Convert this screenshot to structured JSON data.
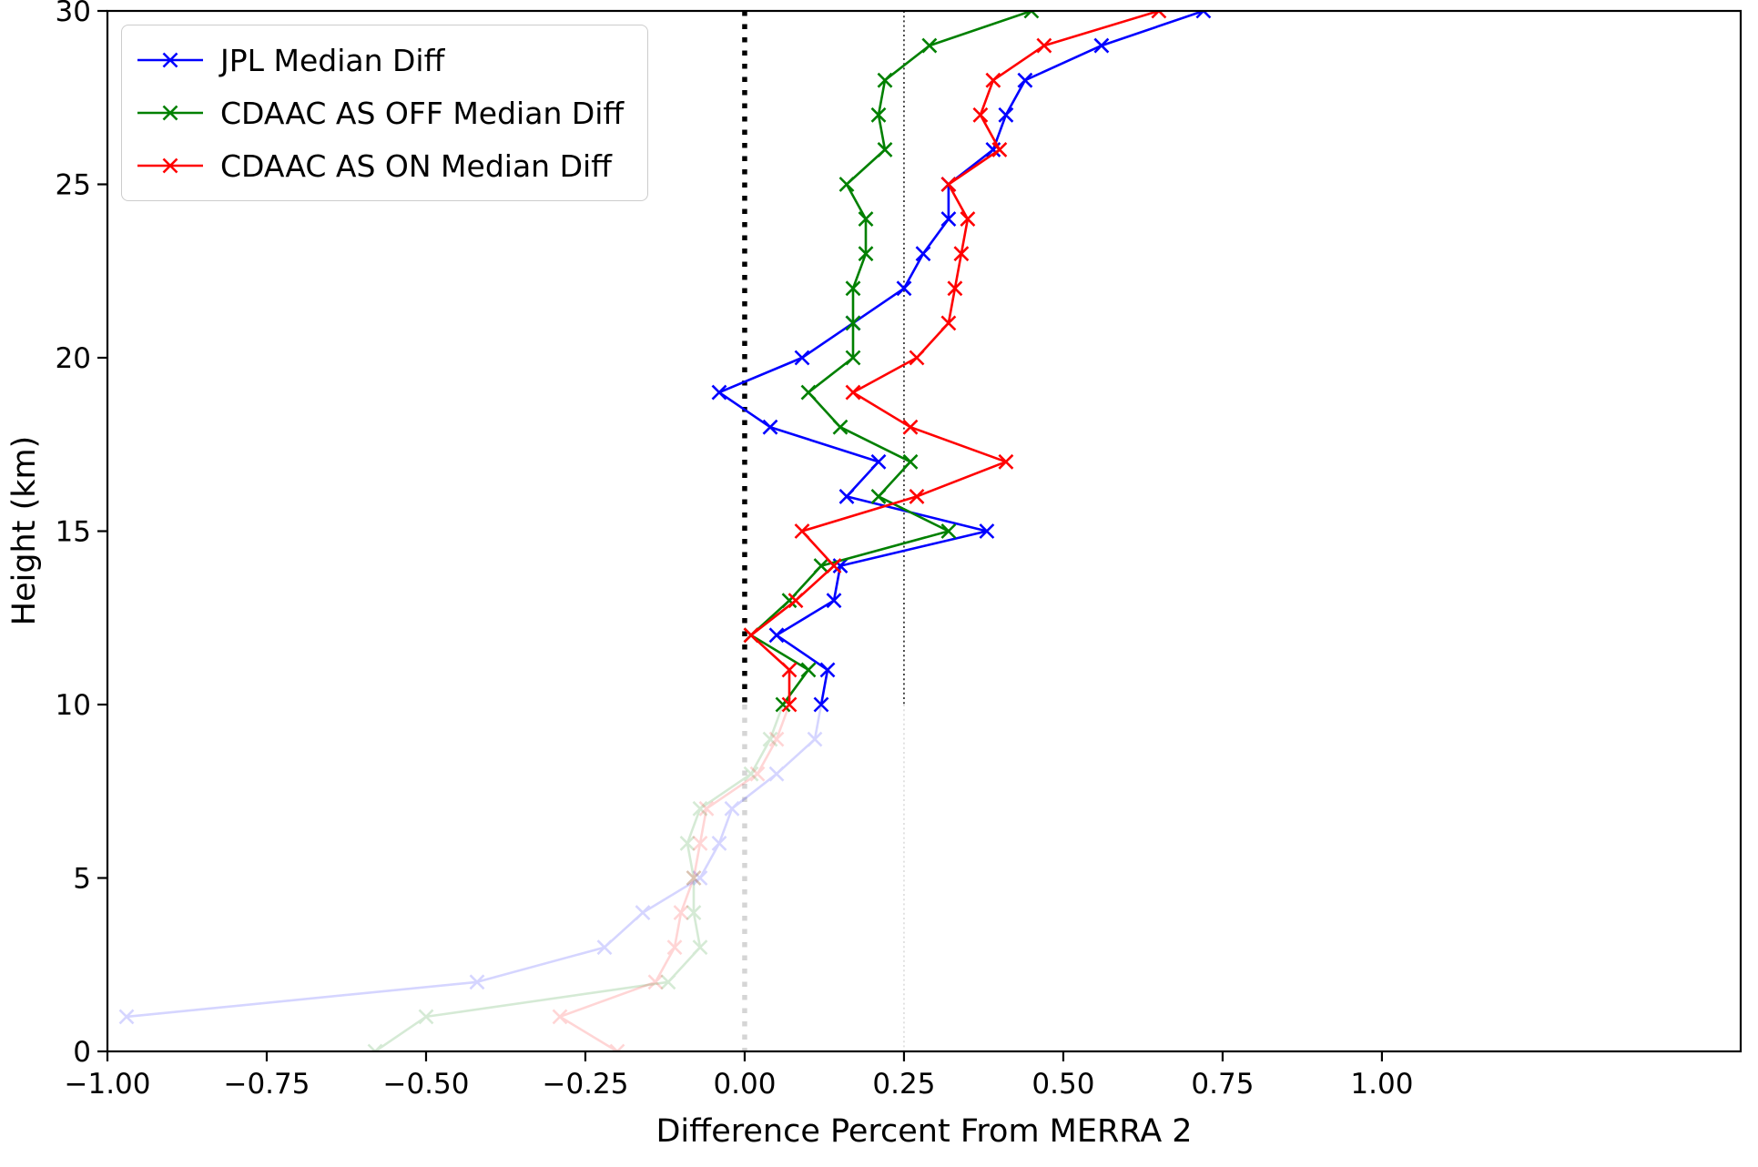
{
  "chart_data": {
    "type": "line",
    "title": "",
    "xlabel": "Difference Percent From MERRA 2",
    "ylabel": "Height (km)",
    "xlim": [
      -1.0,
      1.563
    ],
    "ylim": [
      0,
      30
    ],
    "xticks": [
      -1.0,
      -0.75,
      -0.5,
      -0.25,
      0.0,
      0.25,
      0.5,
      0.75,
      1.0
    ],
    "xtick_labels": [
      "−1.00",
      "−0.75",
      "−0.50",
      "−0.25",
      "0.00",
      "0.25",
      "0.50",
      "0.75",
      "1.00"
    ],
    "yticks": [
      0,
      5,
      10,
      15,
      20,
      25,
      30
    ],
    "ytick_labels": [
      "0",
      "5",
      "10",
      "15",
      "20",
      "25",
      "30"
    ],
    "grid": false,
    "legend_position": "upper-left",
    "fade_below_height_km": 10,
    "fade_alpha": 0.16,
    "reference_lines": [
      {
        "x": 0.0,
        "color": "#000000",
        "style": "dotted",
        "width": 5.5
      },
      {
        "x": 0.25,
        "color": "#000000",
        "style": "dotted",
        "width": 1.4
      }
    ],
    "heights_km": [
      30,
      29,
      28,
      27,
      26,
      25,
      24,
      23,
      22,
      21,
      20,
      19,
      18,
      17,
      16,
      15,
      14,
      13,
      12,
      11,
      10,
      9,
      8,
      7,
      6,
      5,
      4,
      3,
      2,
      1,
      0
    ],
    "series": [
      {
        "name": "JPL Median Diff",
        "color": "#0000ff",
        "marker": "x",
        "values": [
          0.72,
          0.56,
          0.44,
          0.41,
          0.39,
          0.32,
          0.32,
          0.28,
          0.25,
          0.17,
          0.09,
          -0.04,
          0.04,
          0.21,
          0.16,
          0.38,
          0.15,
          0.14,
          0.05,
          0.13,
          0.12,
          0.11,
          0.05,
          -0.02,
          -0.04,
          -0.07,
          -0.16,
          -0.22,
          -0.42,
          -0.97,
          null
        ]
      },
      {
        "name": "CDAAC AS OFF Median Diff",
        "color": "#008000",
        "marker": "x",
        "values": [
          0.45,
          0.29,
          0.22,
          0.21,
          0.22,
          0.16,
          0.19,
          0.19,
          0.17,
          0.17,
          0.17,
          0.1,
          0.15,
          0.26,
          0.21,
          0.32,
          0.12,
          0.07,
          0.01,
          0.1,
          0.06,
          0.04,
          0.01,
          -0.07,
          -0.09,
          -0.08,
          -0.08,
          -0.07,
          -0.12,
          -0.5,
          -0.58
        ]
      },
      {
        "name": "CDAAC AS ON Median Diff",
        "color": "#ff0000",
        "marker": "x",
        "values": [
          0.65,
          0.47,
          0.39,
          0.37,
          0.4,
          0.32,
          0.35,
          0.34,
          0.33,
          0.32,
          0.27,
          0.17,
          0.26,
          0.41,
          0.27,
          0.09,
          0.14,
          0.08,
          0.01,
          0.07,
          0.07,
          0.05,
          0.02,
          -0.06,
          -0.07,
          -0.08,
          -0.1,
          -0.11,
          -0.14,
          -0.29,
          -0.2
        ]
      }
    ]
  }
}
